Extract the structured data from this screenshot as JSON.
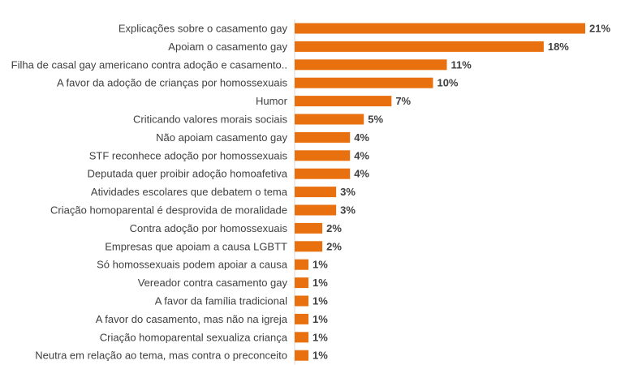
{
  "chart_data": {
    "type": "bar",
    "orientation": "horizontal",
    "categories": [
      "Explicações sobre o casamento gay",
      "Apoiam o casamento gay",
      "Filha de casal gay americano contra adoção e casamento..",
      "A favor da adoção de crianças por homossexuais",
      "Humor",
      "Criticando valores morais sociais",
      "Não apoiam casamento gay",
      "STF reconhece adoção por homossexuais",
      "Deputada quer proibir adoção homoafetiva",
      "Atividades escolares que debatem o tema",
      "Criação homoparental é desprovida de moralidade",
      "Contra adoção por homossexuais",
      "Empresas que apoiam a causa LGBTT",
      "Só homossexuais podem apoiar a causa",
      "Vereador contra casamento gay",
      "A favor da família tradicional",
      "A favor do casamento, mas não na igreja",
      "Criação homoparental sexualiza criança",
      "Neutra em relação ao tema, mas contra o preconceito"
    ],
    "values": [
      21,
      18,
      11,
      10,
      7,
      5,
      4,
      4,
      4,
      3,
      3,
      2,
      2,
      1,
      1,
      1,
      1,
      1,
      1
    ],
    "value_labels": [
      "21%",
      "18%",
      "11%",
      "10%",
      "7%",
      "5%",
      "4%",
      "4%",
      "4%",
      "3%",
      "3%",
      "2%",
      "2%",
      "1%",
      "1%",
      "1%",
      "1%",
      "1%",
      "1%"
    ],
    "xlim": [
      0,
      21
    ],
    "bar_color": "#E8700F",
    "grid": false,
    "title": "",
    "xlabel": "",
    "ylabel": ""
  }
}
